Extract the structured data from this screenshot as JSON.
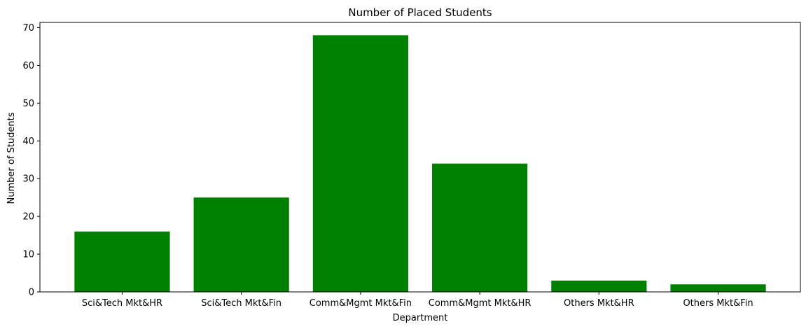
{
  "chart_data": {
    "type": "bar",
    "title": "Number of Placed Students",
    "xlabel": "Department",
    "ylabel": "Number of Students",
    "categories": [
      "Sci&Tech Mkt&HR",
      "Sci&Tech Mkt&Fin",
      "Comm&Mgmt Mkt&Fin",
      "Comm&Mgmt Mkt&HR",
      "Others Mkt&HR",
      "Others Mkt&Fin"
    ],
    "values": [
      16,
      25,
      68,
      34,
      3,
      2
    ],
    "ylim": [
      0,
      71.4
    ],
    "yticks": [
      0,
      10,
      20,
      30,
      40,
      50,
      60,
      70
    ],
    "grid": false,
    "bar_color": "#008000"
  }
}
